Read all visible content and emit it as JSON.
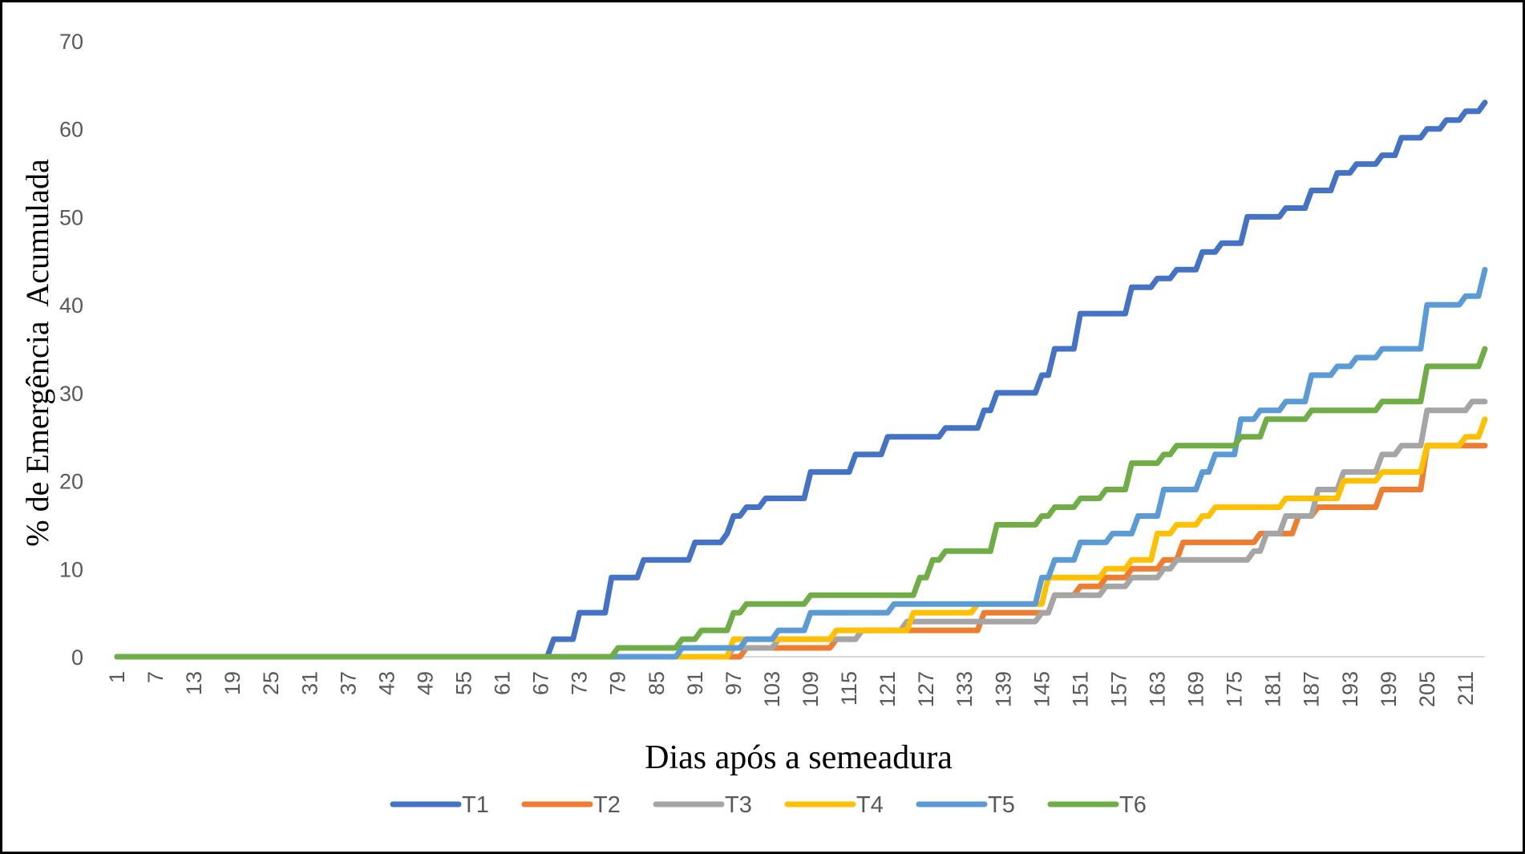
{
  "chart_data": {
    "type": "line",
    "title": "",
    "xlabel": "Dias após a semeadura",
    "ylabel": "% de Emergência  Acumulada",
    "ylim": [
      0,
      70
    ],
    "xlim": [
      1,
      214
    ],
    "yticks": [
      0,
      10,
      20,
      30,
      40,
      50,
      60,
      70
    ],
    "xticks": [
      1,
      7,
      13,
      19,
      25,
      31,
      37,
      43,
      49,
      55,
      61,
      67,
      73,
      79,
      85,
      91,
      97,
      103,
      109,
      115,
      121,
      127,
      133,
      139,
      145,
      151,
      157,
      163,
      169,
      175,
      181,
      187,
      193,
      199,
      205,
      211
    ],
    "grid": false,
    "legend_position": "bottom",
    "step_encoding": "each pair is [day, cumulative % from that day on]",
    "series": [
      {
        "name": "T1",
        "color": "#4472C4",
        "steps": [
          [
            1,
            0
          ],
          [
            69,
            2
          ],
          [
            73,
            5
          ],
          [
            78,
            9
          ],
          [
            83,
            11
          ],
          [
            91,
            13
          ],
          [
            96,
            14
          ],
          [
            97,
            16
          ],
          [
            99,
            17
          ],
          [
            102,
            18
          ],
          [
            109,
            21
          ],
          [
            116,
            23
          ],
          [
            121,
            25
          ],
          [
            130,
            26
          ],
          [
            136,
            28
          ],
          [
            138,
            30
          ],
          [
            145,
            32
          ],
          [
            147,
            35
          ],
          [
            151,
            39
          ],
          [
            159,
            42
          ],
          [
            163,
            43
          ],
          [
            166,
            44
          ],
          [
            170,
            46
          ],
          [
            173,
            47
          ],
          [
            177,
            50
          ],
          [
            183,
            51
          ],
          [
            187,
            53
          ],
          [
            191,
            55
          ],
          [
            194,
            56
          ],
          [
            198,
            57
          ],
          [
            201,
            59
          ],
          [
            205,
            60
          ],
          [
            208,
            61
          ],
          [
            211,
            62
          ],
          [
            214,
            63
          ]
        ]
      },
      {
        "name": "T2",
        "color": "#ED7D31",
        "steps": [
          [
            1,
            0
          ],
          [
            99,
            1
          ],
          [
            113,
            2
          ],
          [
            117,
            3
          ],
          [
            136,
            5
          ],
          [
            147,
            7
          ],
          [
            151,
            8
          ],
          [
            155,
            9
          ],
          [
            159,
            10
          ],
          [
            164,
            11
          ],
          [
            167,
            13
          ],
          [
            179,
            14
          ],
          [
            185,
            16
          ],
          [
            188,
            17
          ],
          [
            198,
            19
          ],
          [
            205,
            24
          ]
        ]
      },
      {
        "name": "T3",
        "color": "#A5A5A5",
        "steps": [
          [
            1,
            0
          ],
          [
            97,
            1
          ],
          [
            104,
            2
          ],
          [
            117,
            3
          ],
          [
            124,
            4
          ],
          [
            145,
            5
          ],
          [
            147,
            7
          ],
          [
            155,
            8
          ],
          [
            159,
            9
          ],
          [
            164,
            10
          ],
          [
            166,
            11
          ],
          [
            178,
            12
          ],
          [
            180,
            14
          ],
          [
            183,
            16
          ],
          [
            188,
            19
          ],
          [
            192,
            21
          ],
          [
            198,
            23
          ],
          [
            201,
            24
          ],
          [
            205,
            28
          ],
          [
            212,
            29
          ]
        ]
      },
      {
        "name": "T4",
        "color": "#FFC000",
        "steps": [
          [
            1,
            0
          ],
          [
            97,
            2
          ],
          [
            113,
            3
          ],
          [
            125,
            5
          ],
          [
            135,
            6
          ],
          [
            146,
            9
          ],
          [
            155,
            10
          ],
          [
            159,
            11
          ],
          [
            163,
            14
          ],
          [
            166,
            15
          ],
          [
            170,
            16
          ],
          [
            172,
            17
          ],
          [
            183,
            18
          ],
          [
            192,
            20
          ],
          [
            198,
            21
          ],
          [
            205,
            24
          ],
          [
            211,
            25
          ],
          [
            214,
            27
          ]
        ]
      },
      {
        "name": "T5",
        "color": "#5B9BD5",
        "steps": [
          [
            1,
            0
          ],
          [
            89,
            1
          ],
          [
            99,
            2
          ],
          [
            104,
            3
          ],
          [
            109,
            5
          ],
          [
            122,
            6
          ],
          [
            145,
            9
          ],
          [
            147,
            11
          ],
          [
            151,
            13
          ],
          [
            156,
            14
          ],
          [
            160,
            16
          ],
          [
            164,
            19
          ],
          [
            170,
            21
          ],
          [
            172,
            23
          ],
          [
            176,
            27
          ],
          [
            179,
            28
          ],
          [
            183,
            29
          ],
          [
            187,
            32
          ],
          [
            191,
            33
          ],
          [
            194,
            34
          ],
          [
            198,
            35
          ],
          [
            205,
            40
          ],
          [
            211,
            41
          ],
          [
            214,
            44
          ]
        ]
      },
      {
        "name": "T6",
        "color": "#70AD47",
        "steps": [
          [
            1,
            0
          ],
          [
            79,
            1
          ],
          [
            89,
            2
          ],
          [
            92,
            3
          ],
          [
            97,
            5
          ],
          [
            99,
            6
          ],
          [
            109,
            7
          ],
          [
            126,
            9
          ],
          [
            128,
            11
          ],
          [
            130,
            12
          ],
          [
            138,
            15
          ],
          [
            145,
            16
          ],
          [
            147,
            17
          ],
          [
            151,
            18
          ],
          [
            155,
            19
          ],
          [
            159,
            22
          ],
          [
            164,
            23
          ],
          [
            166,
            24
          ],
          [
            176,
            25
          ],
          [
            180,
            27
          ],
          [
            187,
            28
          ],
          [
            198,
            29
          ],
          [
            205,
            33
          ],
          [
            214,
            35
          ]
        ]
      }
    ]
  }
}
